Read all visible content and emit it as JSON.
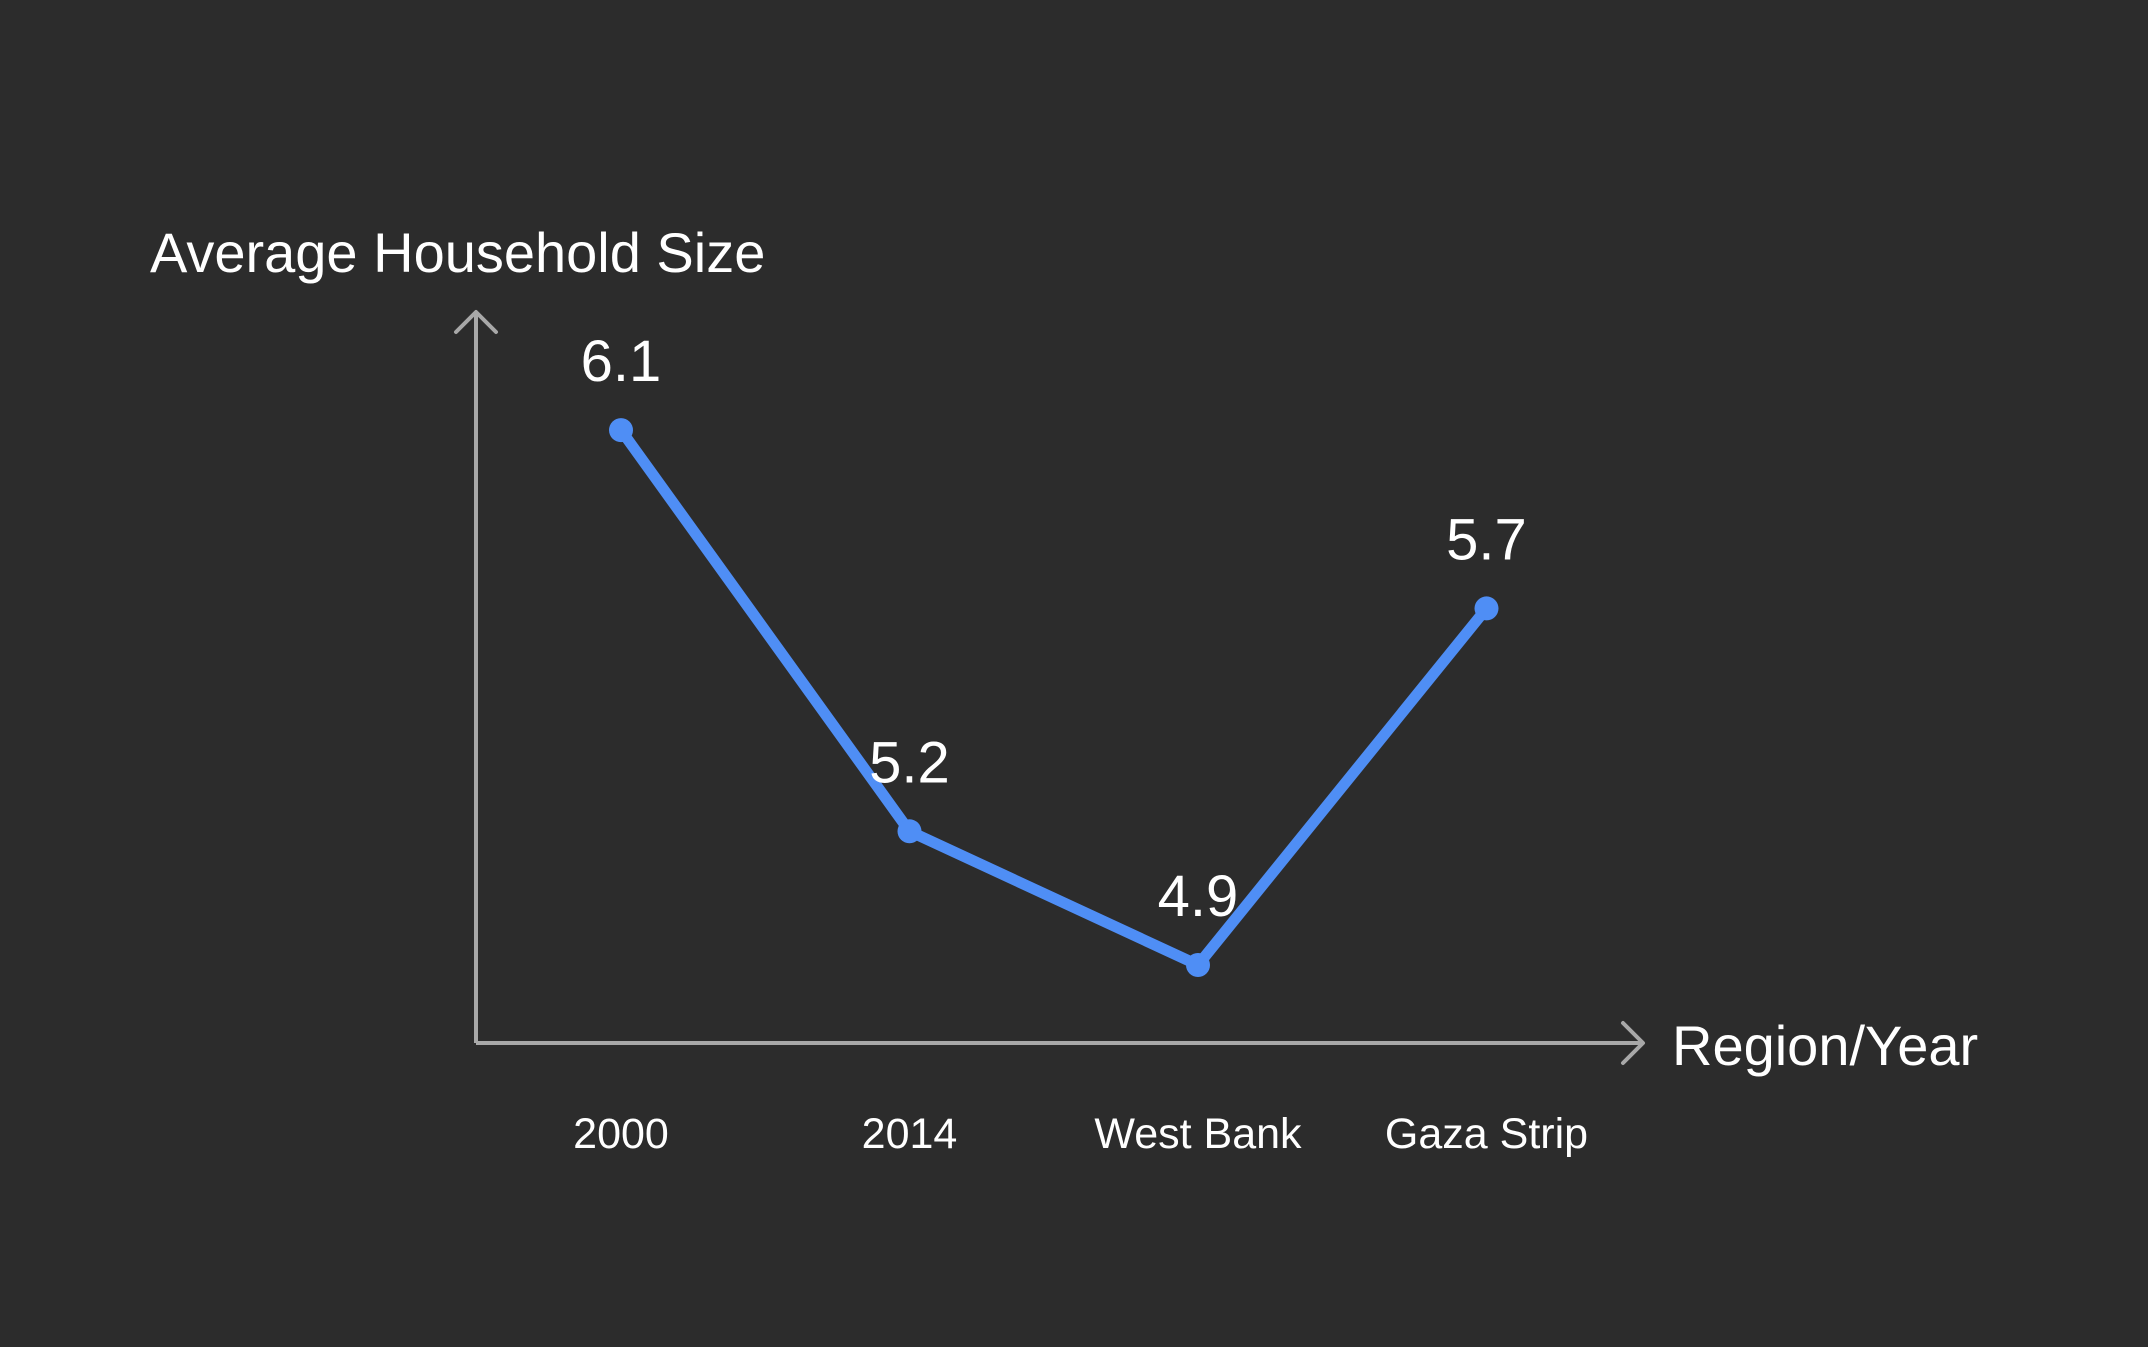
{
  "chart_data": {
    "type": "line",
    "title": "",
    "ylabel": "Average Household Size",
    "xlabel": "Region/Year",
    "categories": [
      "2000",
      "2014",
      "West Bank",
      "Gaza Strip"
    ],
    "series": [
      {
        "values": [
          6.1,
          5.2,
          4.9,
          5.7
        ],
        "color": "#4f8ef5"
      }
    ],
    "data_labels": [
      "6.1",
      "5.2",
      "4.9",
      "5.7"
    ],
    "ylim": [
      4.725,
      6.475
    ],
    "grid": false,
    "legend": "none",
    "axis_color": "#a8a8a8",
    "background_color": "#2c2c2c"
  }
}
